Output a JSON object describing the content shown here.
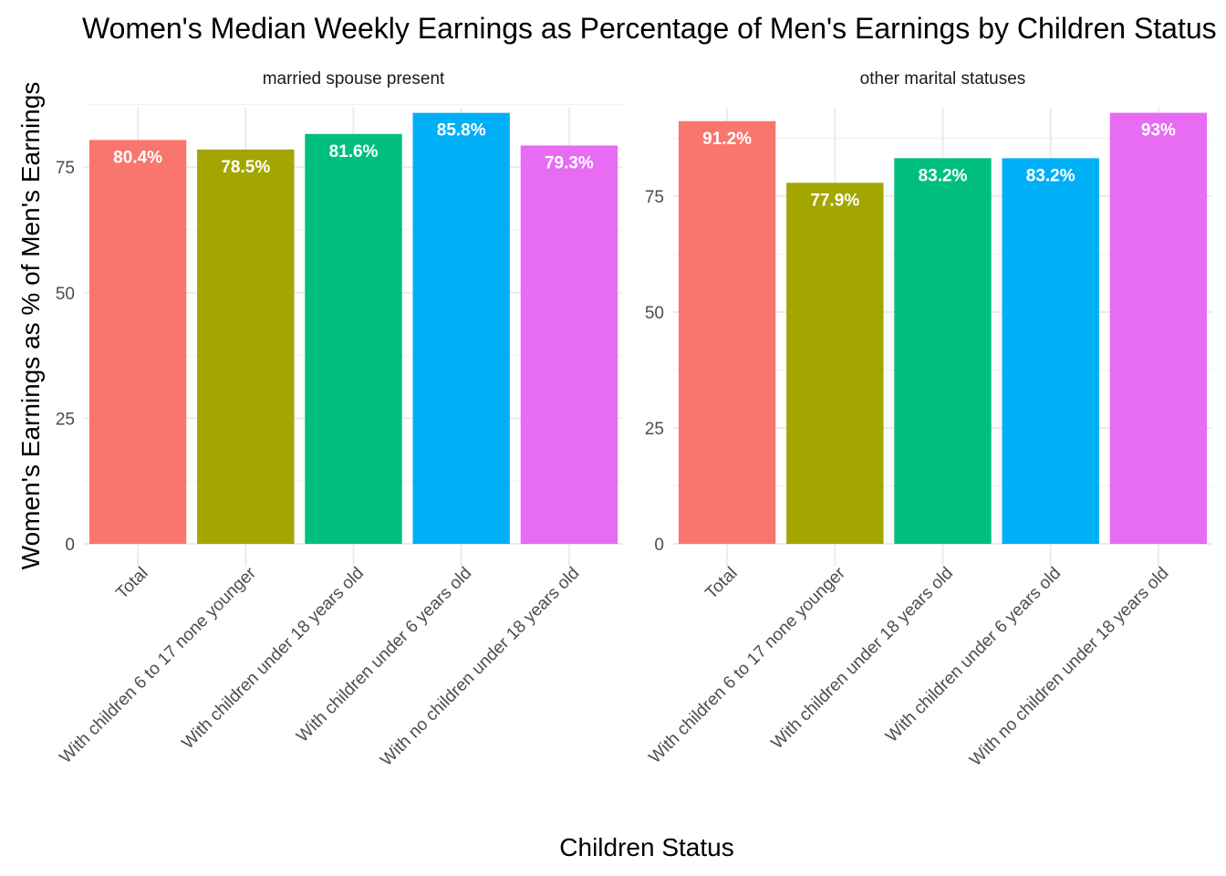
{
  "chart_data": {
    "type": "bar",
    "title": "Women's Median Weekly Earnings as Percentage of Men's Earnings by Children Status",
    "xlabel": "Children Status",
    "ylabel": "Women's Earnings as % of Men's Earnings",
    "categories": [
      "Total",
      "With children 6 to 17 none younger",
      "With children under 18 years old",
      "With children under 6 years old",
      "With no children under 18 years old"
    ],
    "colors": [
      "#F8766D",
      "#A3A500",
      "#00BF7D",
      "#00B0F6",
      "#E76BF3"
    ],
    "legend": "none",
    "grid": true,
    "panels": [
      {
        "name": "married spouse present",
        "values": [
          80.4,
          78.5,
          81.6,
          85.8,
          79.3
        ],
        "labels": [
          "80.4%",
          "78.5%",
          "81.6%",
          "85.8%",
          "79.3%"
        ],
        "ylim": [
          0,
          90.1
        ],
        "yticks": [
          0,
          25,
          50,
          75
        ]
      },
      {
        "name": "other marital statuses",
        "values": [
          91.2,
          77.9,
          83.2,
          83.2,
          93
        ],
        "labels": [
          "91.2%",
          "77.9%",
          "83.2%",
          "83.2%",
          "93%"
        ],
        "ylim": [
          0,
          97.65
        ],
        "yticks": [
          0,
          25,
          50,
          75
        ]
      }
    ]
  }
}
